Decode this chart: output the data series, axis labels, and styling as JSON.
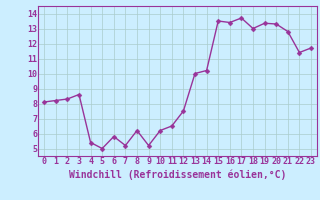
{
  "data_x": [
    0,
    1,
    2,
    3,
    4,
    5,
    6,
    7,
    8,
    9,
    10,
    11,
    12,
    13,
    14,
    15,
    16,
    17,
    18,
    19,
    20,
    21,
    22,
    23
  ],
  "data_y": [
    8.1,
    8.2,
    8.3,
    8.6,
    5.4,
    5.0,
    5.8,
    5.2,
    6.2,
    5.2,
    6.2,
    6.5,
    7.5,
    10.0,
    10.2,
    13.5,
    13.4,
    13.7,
    13.0,
    13.35,
    13.3,
    12.8,
    11.4,
    11.7
  ],
  "line_color": "#993399",
  "marker_color": "#993399",
  "bg_color": "#cceeff",
  "grid_color": "#aacccc",
  "xlabel": "Windchill (Refroidissement éolien,°C)",
  "xlabel_color": "#993399",
  "tick_color": "#993399",
  "ylim": [
    4.5,
    14.5
  ],
  "xlim": [
    -0.5,
    23.5
  ],
  "yticks": [
    5,
    6,
    7,
    8,
    9,
    10,
    11,
    12,
    13,
    14
  ],
  "xticks": [
    0,
    1,
    2,
    3,
    4,
    5,
    6,
    7,
    8,
    9,
    10,
    11,
    12,
    13,
    14,
    15,
    16,
    17,
    18,
    19,
    20,
    21,
    22,
    23
  ],
  "xtick_labels": [
    "0",
    "1",
    "2",
    "3",
    "4",
    "5",
    "6",
    "7",
    "8",
    "9",
    "10",
    "11",
    "12",
    "13",
    "14",
    "15",
    "16",
    "17",
    "18",
    "19",
    "20",
    "21",
    "22",
    "23"
  ],
  "font_size": 6,
  "marker_size": 2.5,
  "line_width": 1.0
}
